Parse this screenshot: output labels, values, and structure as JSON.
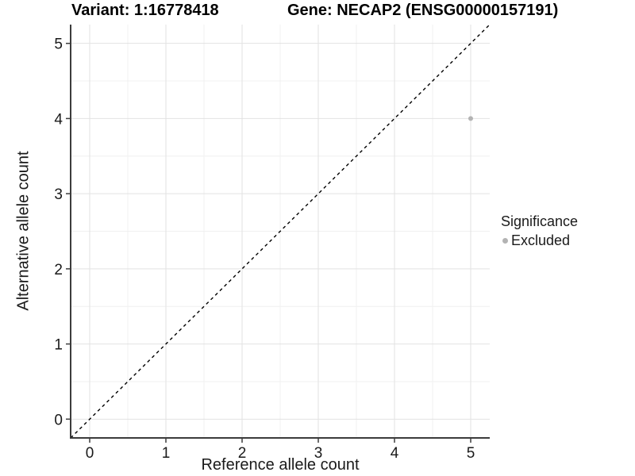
{
  "header": {
    "variant_title": "Variant: 1:16778418",
    "gene_title": "Gene: NECAP2 (ENSG00000157191)"
  },
  "chart_data": {
    "type": "scatter",
    "title_left": "Variant: 1:16778418",
    "title_right": "Gene: NECAP2 (ENSG00000157191)",
    "xlabel": "Reference allele count",
    "ylabel": "Alternative allele count",
    "xlim": [
      -0.25,
      5.25
    ],
    "ylim": [
      -0.25,
      5.25
    ],
    "xticks": [
      0,
      1,
      2,
      3,
      4,
      5
    ],
    "yticks": [
      0,
      1,
      2,
      3,
      4,
      5
    ],
    "x_minor_gridlines": [
      0.5,
      1.5,
      2.5,
      3.5,
      4.5
    ],
    "y_minor_gridlines": [
      0.5,
      1.5,
      2.5,
      3.5,
      4.5
    ],
    "grid": "major+minor",
    "series": [
      {
        "name": "Excluded",
        "color": "#b3b3b3",
        "points": [
          {
            "x": 5,
            "y": 4
          }
        ]
      }
    ],
    "reference_line": {
      "equation": "y = x",
      "style": "dashed",
      "color": "#000000"
    },
    "legend": {
      "title": "Significance",
      "position": "right",
      "entries": [
        {
          "label": "Excluded",
          "color": "#b3b3b3",
          "marker": "circle"
        }
      ]
    }
  },
  "colors": {
    "background": "#ffffff",
    "axis_line": "#3c3c3c",
    "tick_label": "#1a1a1a",
    "grid_major": "#e2e2e2",
    "grid_minor": "#f0f0f0",
    "point": "#b3b3b3"
  }
}
